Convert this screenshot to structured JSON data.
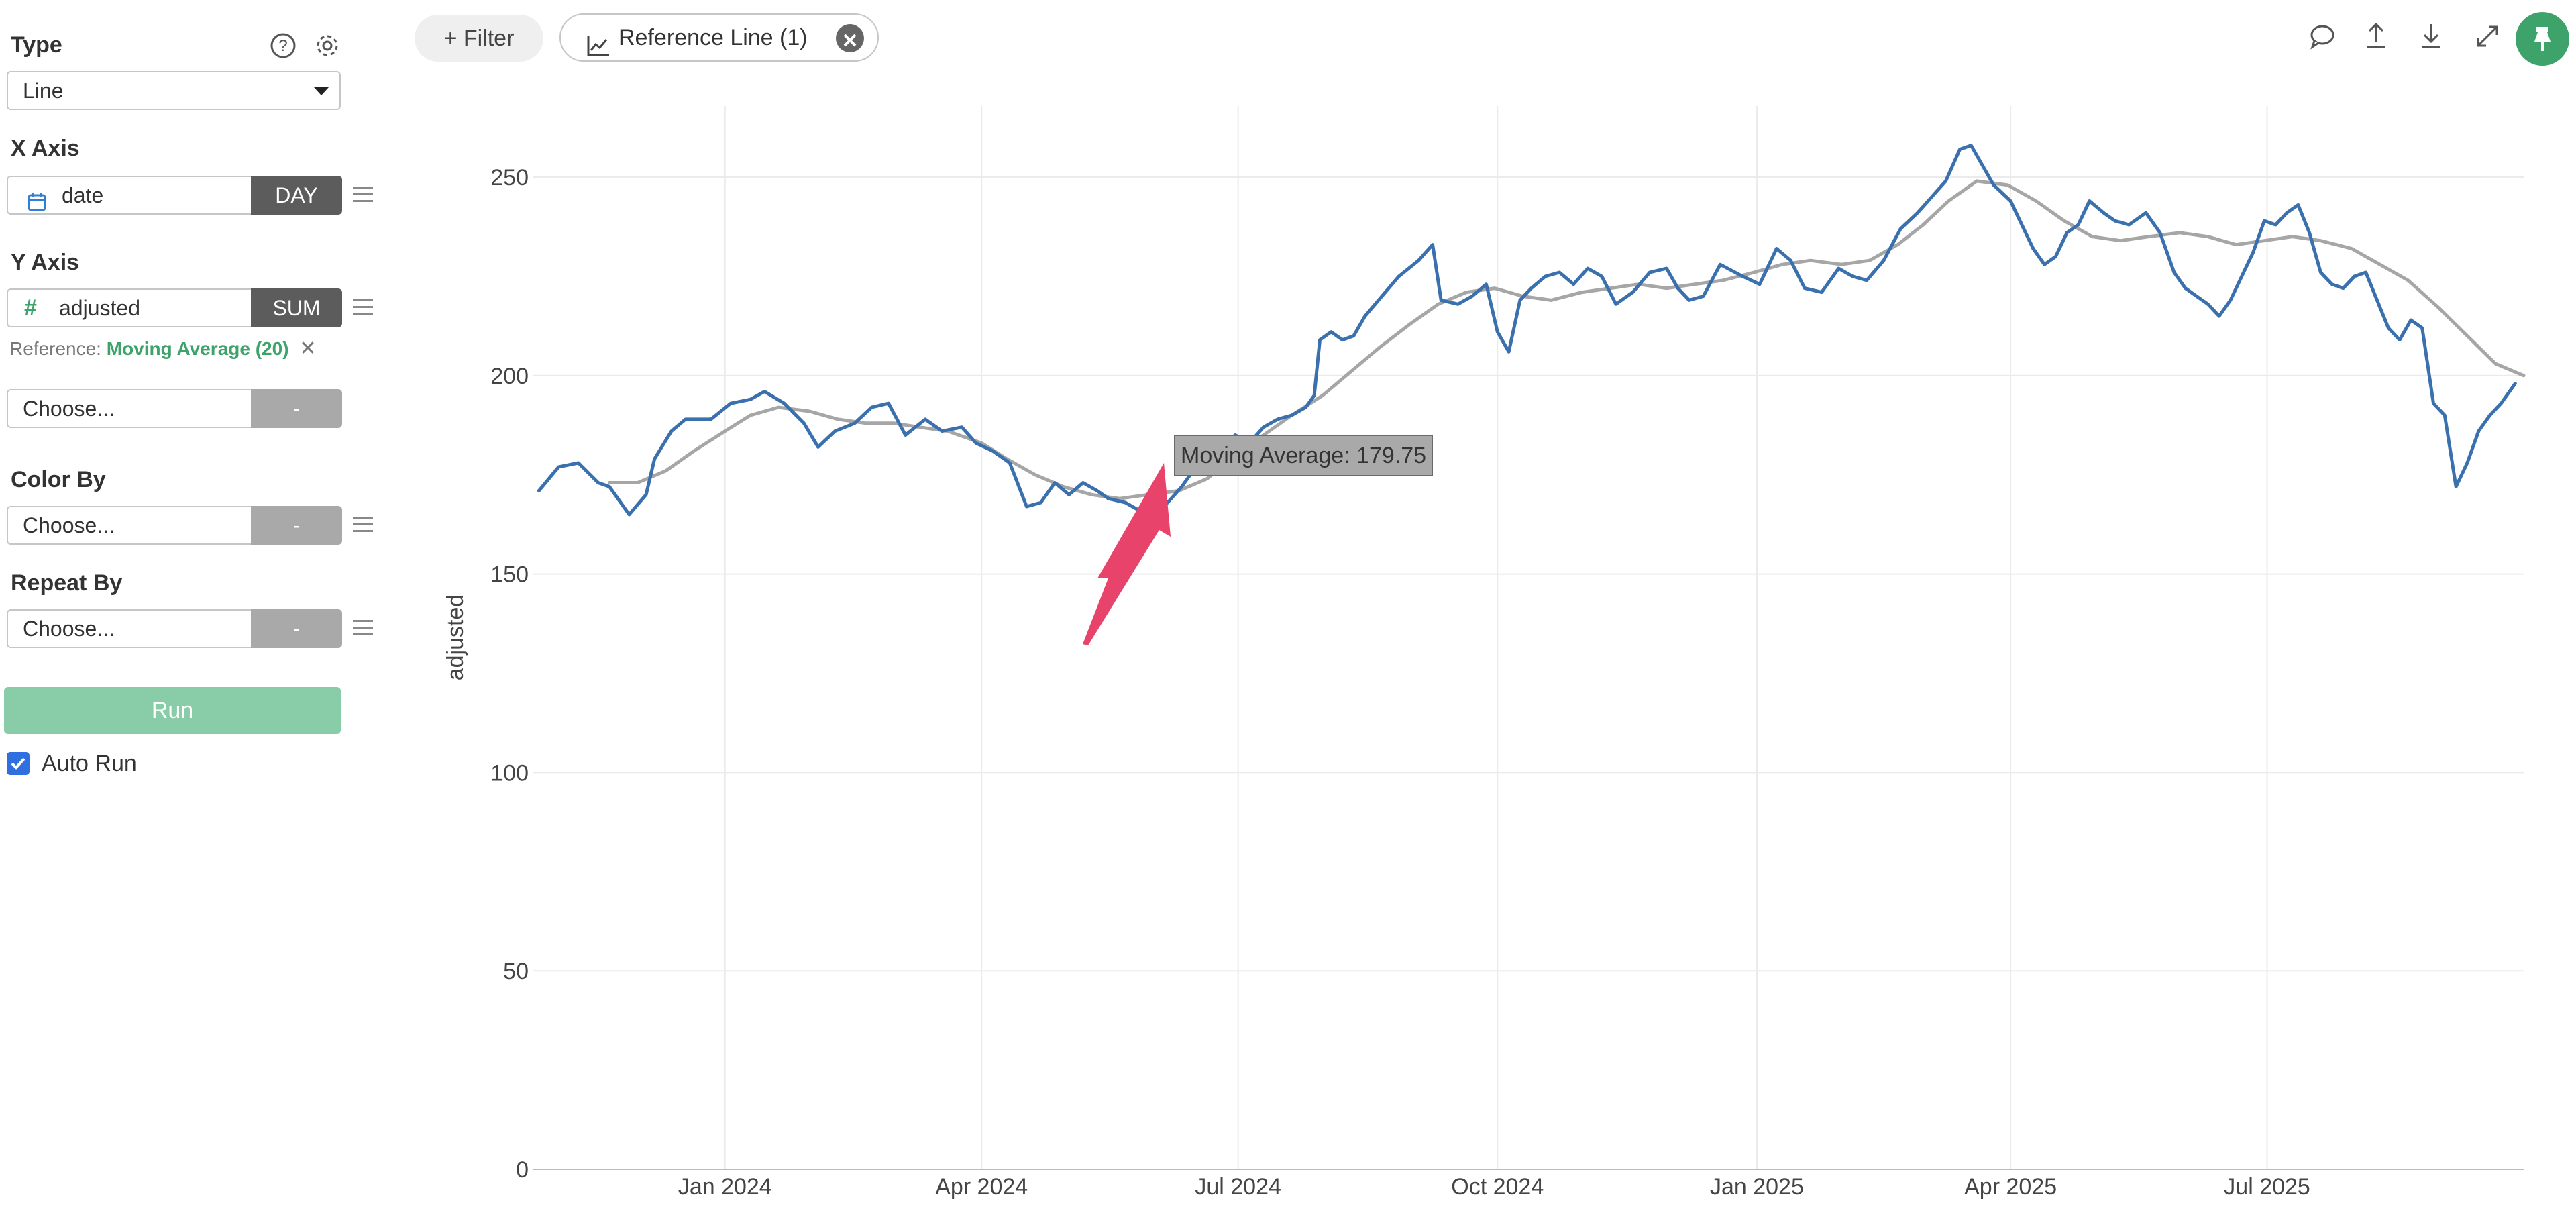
{
  "sidebar": {
    "type_label": "Type",
    "type_value": "Line",
    "x_axis_label": "X Axis",
    "x_axis_field": "date",
    "x_axis_agg": "DAY",
    "y_axis_label": "Y Axis",
    "y_axis_field": "adjusted",
    "y_axis_agg": "SUM",
    "reference_prefix": "Reference:",
    "reference_value": "Moving Average (20)",
    "reference_remove": "✕",
    "extra_choose": "Choose...",
    "extra_btn": "-",
    "color_by_label": "Color By",
    "color_by_value": "Choose...",
    "color_by_btn": "-",
    "repeat_by_label": "Repeat By",
    "repeat_by_value": "Choose...",
    "repeat_by_btn": "-",
    "run_label": "Run",
    "auto_run_label": "Auto Run",
    "auto_run_checked": true
  },
  "toolbar": {
    "filter_label": "+ Filter",
    "reference_pill_label": "Reference Line (1)",
    "icons": [
      "comment-icon",
      "upload-icon",
      "download-icon",
      "expand-icon",
      "pin-icon"
    ]
  },
  "tooltip": {
    "text": "Moving Average: 179.75"
  },
  "colors": {
    "accent": "#3ea36b",
    "series_main": "#3a70ad",
    "series_reference": "#a6a6a6",
    "run_button": "#88cca8",
    "annotation_arrow": "#e8436a"
  },
  "chart_data": {
    "type": "line",
    "ylabel": "adjusted",
    "xlabel": "",
    "ylim": [
      0,
      250
    ],
    "xlim": [
      "2023-10-25",
      "2025-09-30"
    ],
    "y_ticks": [
      0,
      50,
      100,
      150,
      200,
      250
    ],
    "x_ticks": [
      {
        "date": "2024-01-01",
        "label": "Jan 2024"
      },
      {
        "date": "2024-04-01",
        "label": "Apr 2024"
      },
      {
        "date": "2024-07-01",
        "label": "Jul 2024"
      },
      {
        "date": "2024-10-01",
        "label": "Oct 2024"
      },
      {
        "date": "2025-01-01",
        "label": "Jan 2025"
      },
      {
        "date": "2025-04-01",
        "label": "Apr 2025"
      },
      {
        "date": "2025-07-01",
        "label": "Jul 2025"
      }
    ],
    "grid": true,
    "series": [
      {
        "name": "adjusted",
        "color": "#3a70ad",
        "points": [
          [
            "2023-10-27",
            171
          ],
          [
            "2023-11-03",
            177
          ],
          [
            "2023-11-10",
            178
          ],
          [
            "2023-11-17",
            173
          ],
          [
            "2023-11-21",
            172
          ],
          [
            "2023-11-28",
            165
          ],
          [
            "2023-12-04",
            170
          ],
          [
            "2023-12-07",
            179
          ],
          [
            "2023-12-13",
            186
          ],
          [
            "2023-12-18",
            189
          ],
          [
            "2023-12-27",
            189
          ],
          [
            "2024-01-03",
            193
          ],
          [
            "2024-01-10",
            194
          ],
          [
            "2024-01-15",
            196
          ],
          [
            "2024-01-22",
            193
          ],
          [
            "2024-01-29",
            188
          ],
          [
            "2024-02-03",
            182
          ],
          [
            "2024-02-09",
            186
          ],
          [
            "2024-02-16",
            188
          ],
          [
            "2024-02-22",
            192
          ],
          [
            "2024-02-28",
            193
          ],
          [
            "2024-03-05",
            185
          ],
          [
            "2024-03-12",
            189
          ],
          [
            "2024-03-18",
            186
          ],
          [
            "2024-03-25",
            187
          ],
          [
            "2024-03-30",
            183
          ],
          [
            "2024-04-05",
            181
          ],
          [
            "2024-04-11",
            178
          ],
          [
            "2024-04-17",
            167
          ],
          [
            "2024-04-22",
            168
          ],
          [
            "2024-04-27",
            173
          ],
          [
            "2024-05-02",
            170
          ],
          [
            "2024-05-07",
            173
          ],
          [
            "2024-05-12",
            171
          ],
          [
            "2024-05-16",
            169
          ],
          [
            "2024-05-22",
            168
          ],
          [
            "2024-05-27",
            166
          ],
          [
            "2024-06-01",
            165
          ],
          [
            "2024-06-06",
            168
          ],
          [
            "2024-06-11",
            172
          ],
          [
            "2024-06-16",
            177
          ],
          [
            "2024-06-20",
            178
          ],
          [
            "2024-06-25",
            182
          ],
          [
            "2024-06-30",
            185
          ],
          [
            "2024-07-05",
            183
          ],
          [
            "2024-07-10",
            187
          ],
          [
            "2024-07-15",
            189
          ],
          [
            "2024-07-20",
            190
          ],
          [
            "2024-07-25",
            192
          ],
          [
            "2024-07-28",
            195
          ],
          [
            "2024-07-30",
            209
          ],
          [
            "2024-08-03",
            211
          ],
          [
            "2024-08-07",
            209
          ],
          [
            "2024-08-11",
            210
          ],
          [
            "2024-08-15",
            215
          ],
          [
            "2024-08-21",
            220
          ],
          [
            "2024-08-27",
            225
          ],
          [
            "2024-09-03",
            229
          ],
          [
            "2024-09-08",
            233
          ],
          [
            "2024-09-11",
            219
          ],
          [
            "2024-09-17",
            218
          ],
          [
            "2024-09-22",
            220
          ],
          [
            "2024-09-27",
            223
          ],
          [
            "2024-10-01",
            211
          ],
          [
            "2024-10-05",
            206
          ],
          [
            "2024-10-09",
            219
          ],
          [
            "2024-10-13",
            222
          ],
          [
            "2024-10-18",
            225
          ],
          [
            "2024-10-23",
            226
          ],
          [
            "2024-10-28",
            223
          ],
          [
            "2024-11-02",
            227
          ],
          [
            "2024-11-07",
            225
          ],
          [
            "2024-11-12",
            218
          ],
          [
            "2024-11-18",
            221
          ],
          [
            "2024-11-24",
            226
          ],
          [
            "2024-11-30",
            227
          ],
          [
            "2024-12-04",
            222
          ],
          [
            "2024-12-08",
            219
          ],
          [
            "2024-12-13",
            220
          ],
          [
            "2024-12-19",
            228
          ],
          [
            "2024-12-27",
            225
          ],
          [
            "2025-01-02",
            223
          ],
          [
            "2025-01-08",
            232
          ],
          [
            "2025-01-13",
            229
          ],
          [
            "2025-01-18",
            222
          ],
          [
            "2025-01-24",
            221
          ],
          [
            "2025-01-30",
            227
          ],
          [
            "2025-02-04",
            225
          ],
          [
            "2025-02-09",
            224
          ],
          [
            "2025-02-15",
            229
          ],
          [
            "2025-02-21",
            237
          ],
          [
            "2025-02-27",
            241
          ],
          [
            "2025-03-04",
            245
          ],
          [
            "2025-03-09",
            249
          ],
          [
            "2025-03-14",
            257
          ],
          [
            "2025-03-18",
            258
          ],
          [
            "2025-03-22",
            253
          ],
          [
            "2025-03-26",
            248
          ],
          [
            "2025-04-01",
            244
          ],
          [
            "2025-04-05",
            238
          ],
          [
            "2025-04-09",
            232
          ],
          [
            "2025-04-13",
            228
          ],
          [
            "2025-04-17",
            230
          ],
          [
            "2025-04-21",
            236
          ],
          [
            "2025-04-25",
            238
          ],
          [
            "2025-04-29",
            244
          ],
          [
            "2025-05-04",
            241
          ],
          [
            "2025-05-08",
            239
          ],
          [
            "2025-05-13",
            238
          ],
          [
            "2025-05-19",
            241
          ],
          [
            "2025-05-24",
            236
          ],
          [
            "2025-05-29",
            226
          ],
          [
            "2025-06-02",
            222
          ],
          [
            "2025-06-06",
            220
          ],
          [
            "2025-06-10",
            218
          ],
          [
            "2025-06-14",
            215
          ],
          [
            "2025-06-18",
            219
          ],
          [
            "2025-06-22",
            225
          ],
          [
            "2025-06-26",
            231
          ],
          [
            "2025-06-30",
            239
          ],
          [
            "2025-07-04",
            238
          ],
          [
            "2025-07-08",
            241
          ],
          [
            "2025-07-12",
            243
          ],
          [
            "2025-07-16",
            236
          ],
          [
            "2025-07-20",
            226
          ],
          [
            "2025-07-24",
            223
          ],
          [
            "2025-07-28",
            222
          ],
          [
            "2025-08-01",
            225
          ],
          [
            "2025-08-05",
            226
          ],
          [
            "2025-08-09",
            219
          ],
          [
            "2025-08-13",
            212
          ],
          [
            "2025-08-17",
            209
          ],
          [
            "2025-08-21",
            214
          ],
          [
            "2025-08-25",
            212
          ],
          [
            "2025-08-29",
            193
          ],
          [
            "2025-09-02",
            190
          ],
          [
            "2025-09-06",
            172
          ],
          [
            "2025-09-10",
            178
          ],
          [
            "2025-09-14",
            186
          ],
          [
            "2025-09-18",
            190
          ],
          [
            "2025-09-22",
            193
          ],
          [
            "2025-09-27",
            198
          ]
        ]
      },
      {
        "name": "Moving Average (20)",
        "color": "#a6a6a6",
        "points": [
          [
            "2023-11-21",
            173
          ],
          [
            "2023-12-01",
            173
          ],
          [
            "2023-12-11",
            176
          ],
          [
            "2023-12-21",
            181
          ],
          [
            "2024-01-01",
            186
          ],
          [
            "2024-01-10",
            190
          ],
          [
            "2024-01-20",
            192
          ],
          [
            "2024-01-31",
            191
          ],
          [
            "2024-02-10",
            189
          ],
          [
            "2024-02-20",
            188
          ],
          [
            "2024-03-01",
            188
          ],
          [
            "2024-03-10",
            187
          ],
          [
            "2024-03-20",
            186
          ],
          [
            "2024-04-01",
            183
          ],
          [
            "2024-04-10",
            179
          ],
          [
            "2024-04-20",
            175
          ],
          [
            "2024-04-30",
            172
          ],
          [
            "2024-05-10",
            170
          ],
          [
            "2024-05-20",
            169
          ],
          [
            "2024-05-30",
            170
          ],
          [
            "2024-06-10",
            171
          ],
          [
            "2024-06-20",
            174
          ],
          [
            "2024-06-30",
            179.75
          ],
          [
            "2024-07-10",
            185
          ],
          [
            "2024-07-20",
            190
          ],
          [
            "2024-07-31",
            195
          ],
          [
            "2024-08-10",
            201
          ],
          [
            "2024-08-20",
            207
          ],
          [
            "2024-08-31",
            213
          ],
          [
            "2024-09-10",
            218
          ],
          [
            "2024-09-20",
            221
          ],
          [
            "2024-09-30",
            222
          ],
          [
            "2024-10-10",
            220
          ],
          [
            "2024-10-20",
            219
          ],
          [
            "2024-10-31",
            221
          ],
          [
            "2024-11-10",
            222
          ],
          [
            "2024-11-20",
            223
          ],
          [
            "2024-11-30",
            222
          ],
          [
            "2024-12-10",
            223
          ],
          [
            "2024-12-20",
            224
          ],
          [
            "2024-12-31",
            226
          ],
          [
            "2025-01-10",
            228
          ],
          [
            "2025-01-20",
            229
          ],
          [
            "2025-01-31",
            228
          ],
          [
            "2025-02-10",
            229
          ],
          [
            "2025-02-20",
            233
          ],
          [
            "2025-03-01",
            238
          ],
          [
            "2025-03-10",
            244
          ],
          [
            "2025-03-20",
            249
          ],
          [
            "2025-03-31",
            248
          ],
          [
            "2025-04-10",
            244
          ],
          [
            "2025-04-20",
            239
          ],
          [
            "2025-04-30",
            235
          ],
          [
            "2025-05-10",
            234
          ],
          [
            "2025-05-20",
            235
          ],
          [
            "2025-05-31",
            236
          ],
          [
            "2025-06-10",
            235
          ],
          [
            "2025-06-20",
            233
          ],
          [
            "2025-06-30",
            234
          ],
          [
            "2025-07-10",
            235
          ],
          [
            "2025-07-20",
            234
          ],
          [
            "2025-07-31",
            232
          ],
          [
            "2025-08-10",
            228
          ],
          [
            "2025-08-20",
            224
          ],
          [
            "2025-08-31",
            217
          ],
          [
            "2025-09-10",
            210
          ],
          [
            "2025-09-20",
            203
          ],
          [
            "2025-09-30",
            200
          ]
        ]
      }
    ]
  }
}
